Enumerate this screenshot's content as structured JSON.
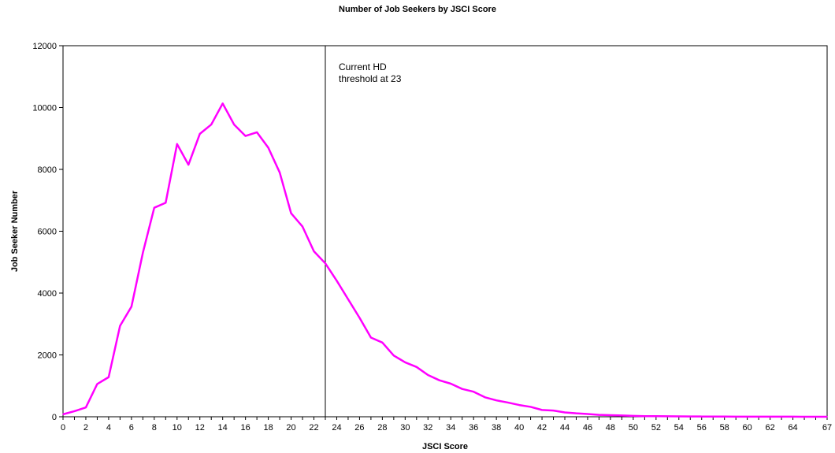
{
  "chart_data": {
    "type": "line",
    "title": "Number of Job Seekers by JSCI Score",
    "xlabel": "JSCI Score",
    "ylabel": "Job Seeker Number",
    "xlim": [
      0,
      67
    ],
    "ylim": [
      0,
      12000
    ],
    "yticks": [
      0,
      2000,
      4000,
      6000,
      8000,
      10000,
      12000
    ],
    "xticks": [
      0,
      2,
      4,
      6,
      8,
      10,
      12,
      14,
      16,
      18,
      20,
      22,
      24,
      26,
      28,
      30,
      32,
      34,
      36,
      38,
      40,
      42,
      44,
      46,
      48,
      50,
      52,
      54,
      56,
      58,
      60,
      62,
      64,
      67
    ],
    "grid": false,
    "legend": "none",
    "series": [
      {
        "color": "#ff00ff",
        "x": [
          0,
          1,
          2,
          3,
          4,
          5,
          6,
          7,
          8,
          9,
          10,
          11,
          12,
          13,
          14,
          15,
          16,
          17,
          18,
          19,
          20,
          21,
          22,
          23,
          24,
          25,
          26,
          27,
          28,
          29,
          30,
          31,
          32,
          33,
          34,
          35,
          36,
          37,
          38,
          39,
          40,
          41,
          42,
          43,
          44,
          45,
          46,
          47,
          48,
          49,
          50,
          51,
          52,
          53,
          54,
          55,
          56,
          57,
          58,
          59,
          60,
          61,
          62,
          63,
          64,
          65,
          66,
          67
        ],
        "values": [
          80,
          180,
          300,
          1060,
          1280,
          2940,
          3560,
          5300,
          6760,
          6920,
          8820,
          8150,
          9150,
          9450,
          10130,
          9450,
          9080,
          9200,
          8700,
          7900,
          6580,
          6150,
          5350,
          4960,
          4400,
          3800,
          3200,
          2560,
          2400,
          1980,
          1760,
          1610,
          1350,
          1180,
          1070,
          900,
          810,
          630,
          530,
          460,
          380,
          320,
          220,
          200,
          140,
          110,
          90,
          60,
          50,
          40,
          30,
          20,
          18,
          15,
          12,
          10,
          8,
          6,
          5,
          4,
          3,
          3,
          2,
          2,
          2,
          1,
          1,
          1
        ]
      }
    ],
    "annotations": [
      {
        "x": 23,
        "type": "vline",
        "lines": [
          "Current HD",
          "threshold at 23"
        ]
      }
    ]
  }
}
